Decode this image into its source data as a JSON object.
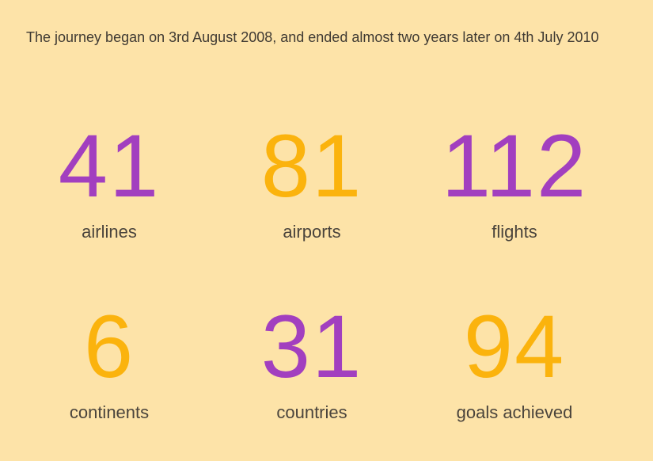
{
  "intro": "The journey began on 3rd August 2008, and ended almost two years later on 4th July 2010",
  "colors": {
    "background": "#fde3a8",
    "purple": "#a23fbf",
    "orange": "#fbb30d"
  },
  "stats": [
    {
      "value": "41",
      "label": "airlines",
      "color": "purple"
    },
    {
      "value": "81",
      "label": "airports",
      "color": "orange"
    },
    {
      "value": "112",
      "label": "flights",
      "color": "purple"
    },
    {
      "value": "6",
      "label": "continents",
      "color": "orange"
    },
    {
      "value": "31",
      "label": "countries",
      "color": "purple"
    },
    {
      "value": "94",
      "label": "goals achieved",
      "color": "orange"
    }
  ]
}
